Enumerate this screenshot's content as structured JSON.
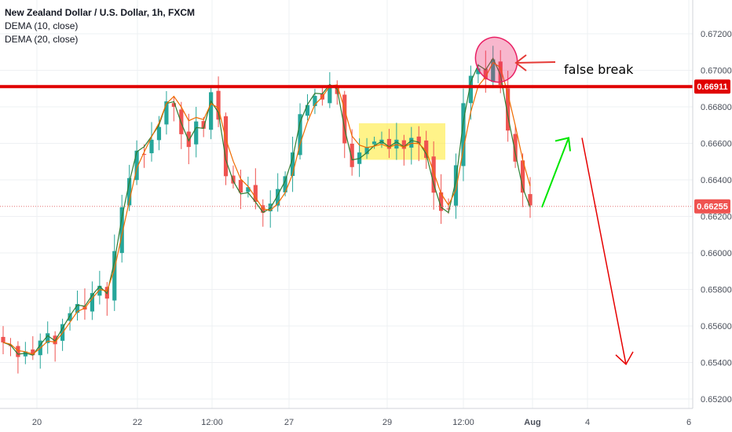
{
  "chart_data": {
    "type": "candlestick",
    "title": "New Zealand Dollar / U.S. Dollar, 1h, FXCM",
    "indicators": [
      {
        "name": "DEMA (10, close)",
        "color": "#2e7d32"
      },
      {
        "name": "DEMA (20, close)",
        "color": "#ef6c00"
      }
    ],
    "ylim": [
      0.6515,
      0.6732
    ],
    "y_ticks": [
      "0.67200",
      "0.67000",
      "0.66800",
      "0.66600",
      "0.66400",
      "0.66200",
      "0.66000",
      "0.65800",
      "0.65600",
      "0.65400",
      "0.65200"
    ],
    "x_ticks": [
      "20",
      "22",
      "12:00",
      "27",
      "29",
      "12:00",
      "Aug",
      "4",
      "6"
    ],
    "grid": true,
    "colors": {
      "up": "#26a69a",
      "down": "#ef5350",
      "resistance": "#e00000",
      "highlight_box": "#ffeb3b",
      "ellipse": "#e91e63",
      "up_arrow": "#00e600",
      "down_arrow": "#e60000"
    },
    "series": [
      {
        "name": "",
        "kind": "close",
        "values": [
          0.6551,
          0.6549,
          0.6543,
          0.6546,
          0.6544,
          0.6552,
          0.6556,
          0.655,
          0.6561,
          0.6567,
          0.6572,
          0.6569,
          0.6578,
          0.6582,
          0.6575,
          0.6601,
          0.6625,
          0.6641,
          0.6656,
          0.6654,
          0.6662,
          0.6669,
          0.6683,
          0.668,
          0.6665,
          0.6658,
          0.6672,
          0.6668,
          0.6688,
          0.6673,
          0.6642,
          0.6638,
          0.6633,
          0.6636,
          0.6628,
          0.6622,
          0.6627,
          0.6635,
          0.6642,
          0.6655,
          0.6676,
          0.6681,
          0.6686,
          0.6684,
          0.6692,
          0.6687,
          0.666,
          0.6647,
          0.6655,
          0.6658,
          0.6661,
          0.6662,
          0.6657,
          0.6662,
          0.6657,
          0.6663,
          0.666,
          0.6652,
          0.6633,
          0.6623,
          0.6624,
          0.6648,
          0.6682,
          0.6697,
          0.6701,
          0.6695,
          0.6706,
          0.6692,
          0.6667,
          0.665,
          0.6633,
          0.6626
        ]
      },
      {
        "name": "DEMA (10, close)",
        "kind": "dema10"
      },
      {
        "name": "DEMA (20, close)",
        "kind": "dema20"
      }
    ],
    "price_tags": [
      {
        "value": 0.66911,
        "label": "0.66911",
        "role": "resistance"
      },
      {
        "value": 0.66255,
        "label": "0.66255",
        "role": "last"
      }
    ],
    "annotations": [
      {
        "text": "false break",
        "kind": "label"
      },
      {
        "kind": "highlight-box",
        "from_price": 0.6671,
        "to_price": 0.6651
      },
      {
        "kind": "ellipse"
      },
      {
        "kind": "arrow-up",
        "from_price": 0.6625,
        "to_price": 0.6663
      },
      {
        "kind": "arrow-down",
        "from_price": 0.6663,
        "to_price": 0.6539
      }
    ]
  }
}
